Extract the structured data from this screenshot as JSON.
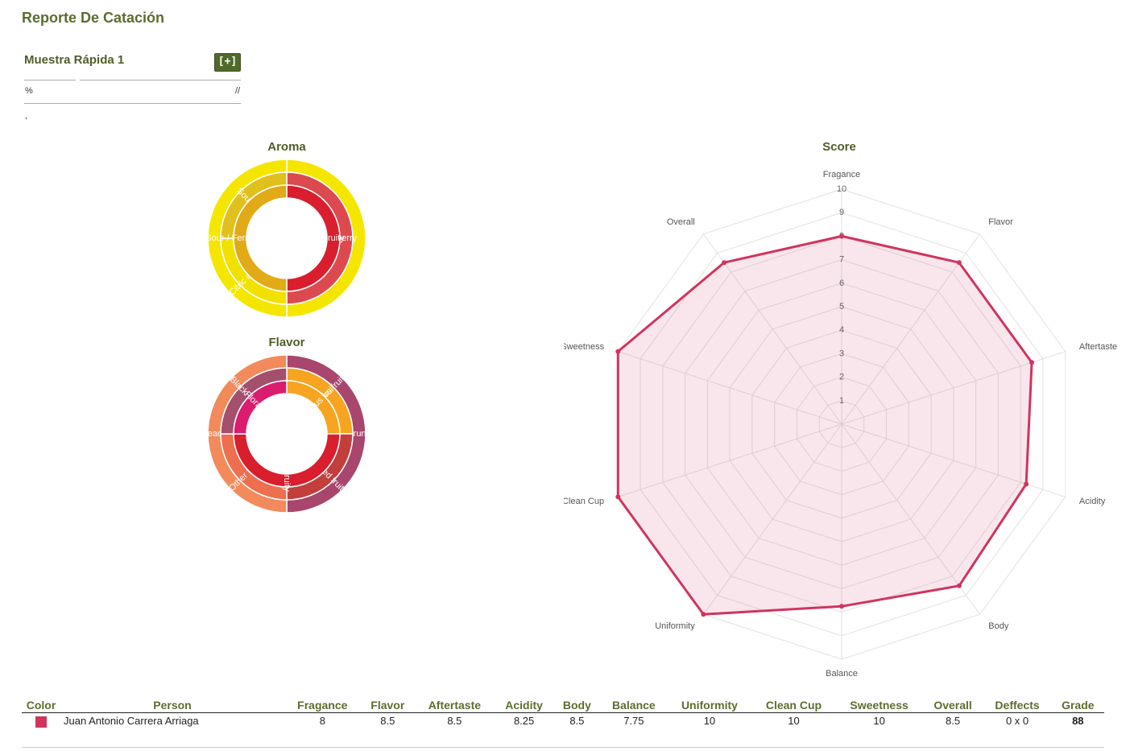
{
  "page": {
    "title": "Reporte De Catación"
  },
  "sample": {
    "name": "Muestra Rápida 1",
    "add_label": "[+]",
    "percent_text": "%",
    "date_text": "//",
    "extra_text": ","
  },
  "aroma": {
    "title": "Aroma",
    "inner": [
      {
        "label": "Fruity",
        "value": 50,
        "color": "#d91e2e"
      },
      {
        "label": "Sour / Fermented",
        "value": 50,
        "color": "#e1aa16"
      }
    ],
    "outer": [
      {
        "label": "Berry",
        "value": 50,
        "color": "#dc4a50"
      },
      {
        "label": "Citric acid",
        "value": 25,
        "color": "#f1e100"
      },
      {
        "label": "Sour",
        "value": 25,
        "color": "#e0c01c"
      }
    ],
    "ring": [
      {
        "value": 50,
        "color": "#f5e600"
      },
      {
        "value": 50,
        "color": "#f5e600"
      }
    ]
  },
  "flavor": {
    "title": "Flavor",
    "inner": [
      {
        "label": "Citrus fruit",
        "value": 25,
        "color": "#f7a420"
      },
      {
        "label": "Fruity",
        "value": 50,
        "color": "#d91e2e"
      },
      {
        "label": "Floral",
        "value": 25,
        "color": "#da1d6f"
      }
    ],
    "outer": [
      {
        "label": "Citrus fruit",
        "value": 25,
        "color": "#f7a420"
      },
      {
        "label": "Dried fruit",
        "value": 25,
        "color": "#c23f3c"
      },
      {
        "label": "Other fruit",
        "value": 25,
        "color": "#ee6e50"
      },
      {
        "label": "Black Tea",
        "value": 25,
        "color": "#a44f6b"
      }
    ],
    "ring": [
      {
        "label": "Prune",
        "value": 50,
        "color": "#a8466d"
      },
      {
        "label": "Peach",
        "value": 50,
        "color": "#f28a5c"
      }
    ]
  },
  "chart_data": {
    "type": "radar",
    "title": "Score",
    "axes": [
      "Fragance",
      "Flavor",
      "Aftertaste",
      "Acidity",
      "Body",
      "Balance",
      "Uniformity",
      "Clean Cup",
      "Sweetness",
      "Overall"
    ],
    "range": [
      0,
      10
    ],
    "ticks": [
      "1",
      "2",
      "3",
      "4",
      "5",
      "6",
      "7",
      "8",
      "9",
      "10"
    ],
    "series": [
      {
        "values": [
          8,
          8.5,
          8.5,
          8.25,
          8.5,
          7.75,
          10,
          10,
          10,
          8.5
        ],
        "color": "#d0345f"
      }
    ]
  },
  "table": {
    "headers": [
      "Color",
      "Person",
      "Fragance",
      "Flavor",
      "Aftertaste",
      "Acidity",
      "Body",
      "Balance",
      "Uniformity",
      "Clean Cup",
      "Sweetness",
      "Overall",
      "Deffects",
      "Grade"
    ],
    "rows": [
      {
        "color": "#d0345f",
        "person": "Juan Antonio Carrera Arriaga",
        "fragance": "8",
        "flavor": "8.5",
        "aftertaste": "8.5",
        "acidity": "8.25",
        "body": "8.5",
        "balance": "7.75",
        "uniformity": "10",
        "clean_cup": "10",
        "sweetness": "10",
        "overall": "8.5",
        "deffects": "0 x 0",
        "grade": "88"
      }
    ]
  }
}
